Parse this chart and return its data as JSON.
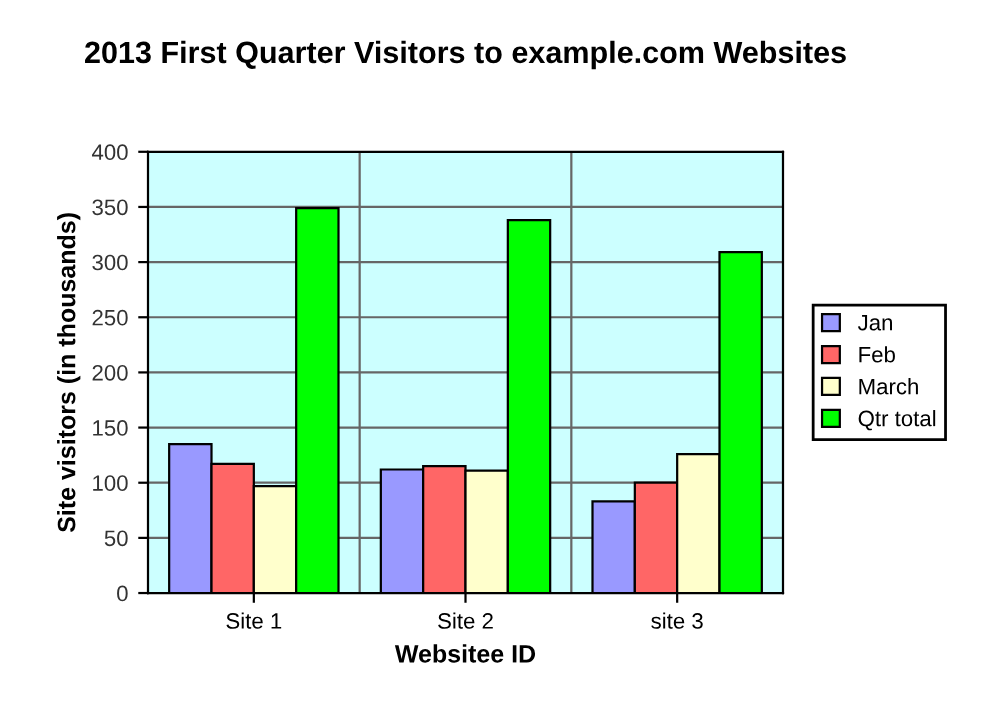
{
  "chart_data": {
    "type": "bar",
    "title": "2013 First Quarter Visitors to example.com Websites",
    "xlabel": "Websitee ID",
    "ylabel": "Site visitors (in thousands)",
    "categories": [
      "Site 1",
      "Site 2",
      "site 3"
    ],
    "series": [
      {
        "name": "Jan",
        "color": "#9999ff",
        "values": [
          135,
          112,
          83
        ]
      },
      {
        "name": "Feb",
        "color": "#ff6666",
        "values": [
          117,
          115,
          100
        ]
      },
      {
        "name": "March",
        "color": "#ffffcc",
        "values": [
          97,
          111,
          126
        ]
      },
      {
        "name": "Qtr total",
        "color": "#00ff00",
        "values": [
          349,
          338,
          309
        ]
      }
    ],
    "ylim": [
      0,
      400
    ],
    "yticks": [
      0,
      50,
      100,
      150,
      200,
      250,
      300,
      350,
      400
    ],
    "grid": true,
    "legend": "right"
  }
}
